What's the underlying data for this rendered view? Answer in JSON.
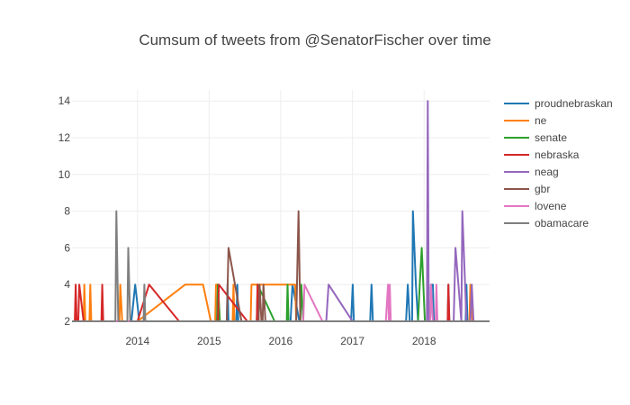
{
  "chart_data": {
    "type": "line",
    "title": "Cumsum of tweets from @SenatorFischer over time",
    "xlabel": "",
    "ylabel": "",
    "x_axis_type": "date",
    "xlim": [
      "2013-02-01",
      "2018-12-01"
    ],
    "ylim": [
      2,
      14.6
    ],
    "x_ticks": [
      {
        "label": "2014",
        "value": "2014-01-01"
      },
      {
        "label": "2015",
        "value": "2015-01-01"
      },
      {
        "label": "2016",
        "value": "2016-01-01"
      },
      {
        "label": "2017",
        "value": "2017-01-01"
      },
      {
        "label": "2018",
        "value": "2018-01-01"
      }
    ],
    "y_ticks": [
      2,
      4,
      6,
      8,
      10,
      12,
      14
    ],
    "grid": true,
    "legend_position": "right",
    "series": [
      {
        "name": "proudnebraskan",
        "color": "#1f77b4",
        "points": [
          [
            "2013-02-01",
            2
          ],
          [
            "2013-12-01",
            2
          ],
          [
            "2013-12-20",
            4
          ],
          [
            "2014-01-10",
            2
          ],
          [
            "2015-02-10",
            2
          ],
          [
            "2015-02-15",
            4
          ],
          [
            "2015-02-20",
            2
          ],
          [
            "2015-04-01",
            2
          ],
          [
            "2015-04-05",
            4
          ],
          [
            "2015-04-10",
            2
          ],
          [
            "2015-05-20",
            2
          ],
          [
            "2015-05-25",
            4
          ],
          [
            "2015-05-30",
            2
          ],
          [
            "2016-01-01",
            2
          ],
          [
            "2016-02-20",
            2
          ],
          [
            "2016-03-01",
            4
          ],
          [
            "2016-04-05",
            2
          ],
          [
            "2016-12-25",
            2
          ],
          [
            "2017-01-02",
            4
          ],
          [
            "2017-01-08",
            2
          ],
          [
            "2017-04-01",
            2
          ],
          [
            "2017-04-08",
            4
          ],
          [
            "2017-04-15",
            2
          ],
          [
            "2017-10-01",
            2
          ],
          [
            "2017-10-10",
            4
          ],
          [
            "2017-10-20",
            2
          ],
          [
            "2017-11-01",
            2
          ],
          [
            "2017-11-05",
            8
          ],
          [
            "2017-11-20",
            4
          ],
          [
            "2017-12-01",
            2
          ],
          [
            "2018-02-01",
            2
          ],
          [
            "2018-02-05",
            4
          ],
          [
            "2018-02-15",
            4
          ],
          [
            "2018-02-20",
            2
          ],
          [
            "2018-05-01",
            2
          ],
          [
            "2018-05-05",
            4
          ],
          [
            "2018-05-10",
            2
          ],
          [
            "2018-08-01",
            2
          ],
          [
            "2018-08-05",
            4
          ],
          [
            "2018-08-10",
            2
          ],
          [
            "2018-12-01",
            2
          ]
        ]
      },
      {
        "name": "ne",
        "color": "#ff7f0e",
        "points": [
          [
            "2013-02-01",
            2
          ],
          [
            "2013-04-01",
            2
          ],
          [
            "2013-04-05",
            4
          ],
          [
            "2013-04-10",
            2
          ],
          [
            "2013-05-01",
            2
          ],
          [
            "2013-05-05",
            4
          ],
          [
            "2013-05-10",
            2
          ],
          [
            "2013-10-01",
            2
          ],
          [
            "2013-10-05",
            4
          ],
          [
            "2013-10-15",
            2
          ],
          [
            "2014-01-01",
            2
          ],
          [
            "2014-09-01",
            4
          ],
          [
            "2014-12-01",
            4
          ],
          [
            "2015-01-10",
            2
          ],
          [
            "2015-02-01",
            2
          ],
          [
            "2015-02-05",
            4
          ],
          [
            "2015-02-15",
            4
          ],
          [
            "2015-02-25",
            2
          ],
          [
            "2015-05-01",
            2
          ],
          [
            "2015-05-05",
            4
          ],
          [
            "2015-05-10",
            2
          ],
          [
            "2015-08-01",
            2
          ],
          [
            "2015-08-05",
            4
          ],
          [
            "2016-01-01",
            4
          ],
          [
            "2016-03-15",
            4
          ],
          [
            "2016-03-20",
            2
          ],
          [
            "2018-08-20",
            2
          ],
          [
            "2018-08-25",
            4
          ],
          [
            "2018-09-05",
            2
          ],
          [
            "2018-12-01",
            2
          ]
        ]
      },
      {
        "name": "senate",
        "color": "#2ca02c",
        "points": [
          [
            "2013-02-01",
            2
          ],
          [
            "2015-02-10",
            2
          ],
          [
            "2015-02-15",
            4
          ],
          [
            "2015-02-25",
            2
          ],
          [
            "2015-09-01",
            2
          ],
          [
            "2015-09-05",
            4
          ],
          [
            "2015-12-01",
            2
          ],
          [
            "2016-02-01",
            2
          ],
          [
            "2016-02-05",
            4
          ],
          [
            "2016-02-10",
            2
          ],
          [
            "2016-04-10",
            2
          ],
          [
            "2016-04-15",
            4
          ],
          [
            "2016-04-25",
            2
          ],
          [
            "2017-12-01",
            2
          ],
          [
            "2017-12-10",
            4
          ],
          [
            "2017-12-20",
            6
          ],
          [
            "2018-01-05",
            2
          ],
          [
            "2018-12-01",
            2
          ]
        ]
      },
      {
        "name": "nebraska",
        "color": "#d62728",
        "points": [
          [
            "2013-02-01",
            2
          ],
          [
            "2013-02-15",
            2
          ],
          [
            "2013-02-20",
            4
          ],
          [
            "2013-02-25",
            2
          ],
          [
            "2013-03-05",
            2
          ],
          [
            "2013-03-10",
            4
          ],
          [
            "2013-04-01",
            2
          ],
          [
            "2013-07-01",
            2
          ],
          [
            "2013-07-05",
            4
          ],
          [
            "2013-07-10",
            2
          ],
          [
            "2014-01-01",
            2
          ],
          [
            "2014-03-01",
            4
          ],
          [
            "2014-08-01",
            2
          ],
          [
            "2015-02-15",
            2
          ],
          [
            "2015-02-20",
            4
          ],
          [
            "2015-07-15",
            2
          ],
          [
            "2015-09-01",
            2
          ],
          [
            "2015-09-05",
            4
          ],
          [
            "2015-09-10",
            2
          ],
          [
            "2018-05-01",
            2
          ],
          [
            "2018-05-05",
            4
          ],
          [
            "2018-05-10",
            2
          ],
          [
            "2018-12-01",
            2
          ]
        ]
      },
      {
        "name": "neag",
        "color": "#9467bd",
        "points": [
          [
            "2013-02-01",
            2
          ],
          [
            "2016-08-20",
            2
          ],
          [
            "2016-09-01",
            4
          ],
          [
            "2017-01-01",
            2
          ],
          [
            "2017-10-01",
            2
          ],
          [
            "2017-12-10",
            2
          ],
          [
            "2018-01-15",
            2
          ],
          [
            "2018-01-20",
            14
          ],
          [
            "2018-01-25",
            2
          ],
          [
            "2018-06-01",
            2
          ],
          [
            "2018-06-10",
            6
          ],
          [
            "2018-07-10",
            2
          ],
          [
            "2018-07-15",
            8
          ],
          [
            "2018-08-05",
            2
          ],
          [
            "2018-08-25",
            2
          ],
          [
            "2018-09-01",
            4
          ],
          [
            "2018-09-10",
            2
          ],
          [
            "2018-12-01",
            2
          ]
        ]
      },
      {
        "name": "gbr",
        "color": "#8c564b",
        "points": [
          [
            "2013-02-01",
            2
          ],
          [
            "2015-04-01",
            2
          ],
          [
            "2015-04-10",
            6
          ],
          [
            "2015-06-15",
            2
          ],
          [
            "2015-09-10",
            2
          ],
          [
            "2015-09-15",
            4
          ],
          [
            "2015-09-25",
            2
          ],
          [
            "2015-10-01",
            2
          ],
          [
            "2015-10-05",
            4
          ],
          [
            "2015-10-15",
            2
          ],
          [
            "2016-03-20",
            2
          ],
          [
            "2016-04-01",
            8
          ],
          [
            "2016-04-10",
            2
          ],
          [
            "2018-12-01",
            2
          ]
        ]
      },
      {
        "name": "lovene",
        "color": "#e377c2",
        "points": [
          [
            "2013-02-01",
            2
          ],
          [
            "2016-04-25",
            2
          ],
          [
            "2016-05-01",
            4
          ],
          [
            "2016-08-01",
            2
          ],
          [
            "2017-06-20",
            2
          ],
          [
            "2017-07-01",
            4
          ],
          [
            "2017-07-05",
            2
          ],
          [
            "2017-07-10",
            4
          ],
          [
            "2017-07-15",
            2
          ],
          [
            "2018-02-01",
            2
          ],
          [
            "2018-02-05",
            4
          ],
          [
            "2018-02-15",
            2
          ],
          [
            "2018-03-01",
            2
          ],
          [
            "2018-03-05",
            4
          ],
          [
            "2018-03-10",
            2
          ],
          [
            "2018-12-01",
            2
          ]
        ]
      },
      {
        "name": "obamacare",
        "color": "#7f7f7f",
        "points": [
          [
            "2013-02-01",
            2
          ],
          [
            "2013-09-10",
            2
          ],
          [
            "2013-09-15",
            8
          ],
          [
            "2013-09-25",
            2
          ],
          [
            "2013-11-10",
            2
          ],
          [
            "2013-11-15",
            6
          ],
          [
            "2013-11-25",
            2
          ],
          [
            "2014-02-01",
            2
          ],
          [
            "2014-02-05",
            4
          ],
          [
            "2014-02-10",
            2
          ],
          [
            "2014-12-01",
            2
          ],
          [
            "2014-12-20",
            2
          ],
          [
            "2018-12-01",
            2
          ]
        ]
      }
    ]
  }
}
